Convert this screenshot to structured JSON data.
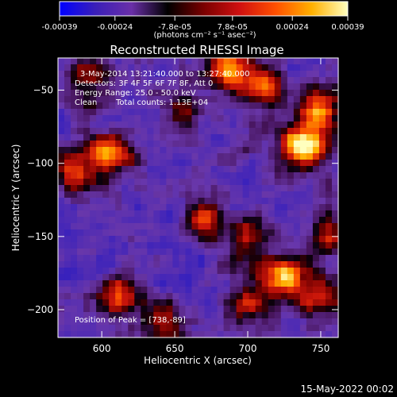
{
  "colorbar": {
    "tick_labels": [
      "-0.00039",
      "-0.00024",
      "-7.8e-05",
      "7.8e-05",
      "0.00024",
      "0.00039"
    ],
    "tick_values": [
      -0.00039,
      -0.00024,
      -7.8e-05,
      7.8e-05,
      0.00024,
      0.00039
    ],
    "range": [
      -0.00039,
      0.00039
    ],
    "unit_label": "(photons cm⁻² s⁻¹ asec⁻²)",
    "colors": [
      "#0000ff",
      "#3a1fb8",
      "#6a2fa8",
      "#000000",
      "#7a0000",
      "#d01010",
      "#ff5000",
      "#ffb000",
      "#ffffc0"
    ]
  },
  "annotations": {
    "time_range": "3-May-2014 13:21:40.000 to 13:27:40.000",
    "detectors": "Detectors: 3F 4F 5F 6F 7F 8F, Att 0",
    "energy": "Energy Range: 25.0 - 50.0 keV",
    "clean": "Clean",
    "total_counts": "Total counts: 1.13E+04",
    "peak": "Position of Peak = [738,-89]"
  },
  "footer_date": "15-May-2022 00:02",
  "chart_data": {
    "type": "heatmap",
    "title": "Reconstructed RHESSI Image",
    "xlabel": "Heliocentric X (arcsec)",
    "ylabel": "Heliocentric Y (arcsec)",
    "xlim": [
      570,
      762
    ],
    "ylim": [
      -219,
      -28
    ],
    "x_ticks": [
      600,
      650,
      700,
      750
    ],
    "y_ticks": [
      -50,
      -100,
      -150,
      -200
    ],
    "grid": false,
    "peak": [
      738,
      -89
    ],
    "blobs": [
      {
        "x": 738,
        "y": -89,
        "intensity": 1.0
      },
      {
        "x": 748,
        "y": -62,
        "intensity": 0.7
      },
      {
        "x": 688,
        "y": -35,
        "intensity": 0.85
      },
      {
        "x": 712,
        "y": -48,
        "intensity": 0.55
      },
      {
        "x": 722,
        "y": -178,
        "intensity": 0.85
      },
      {
        "x": 748,
        "y": -190,
        "intensity": 0.6
      },
      {
        "x": 700,
        "y": -198,
        "intensity": 0.55
      },
      {
        "x": 607,
        "y": -93,
        "intensity": 0.75
      },
      {
        "x": 582,
        "y": -106,
        "intensity": 0.6
      },
      {
        "x": 610,
        "y": -190,
        "intensity": 0.65
      },
      {
        "x": 642,
        "y": -212,
        "intensity": 0.5
      },
      {
        "x": 668,
        "y": -140,
        "intensity": 0.5
      },
      {
        "x": 700,
        "y": -150,
        "intensity": 0.45
      },
      {
        "x": 755,
        "y": -150,
        "intensity": 0.55
      },
      {
        "x": 658,
        "y": -62,
        "intensity": 0.4
      },
      {
        "x": 590,
        "y": -45,
        "intensity": 0.45
      }
    ]
  }
}
